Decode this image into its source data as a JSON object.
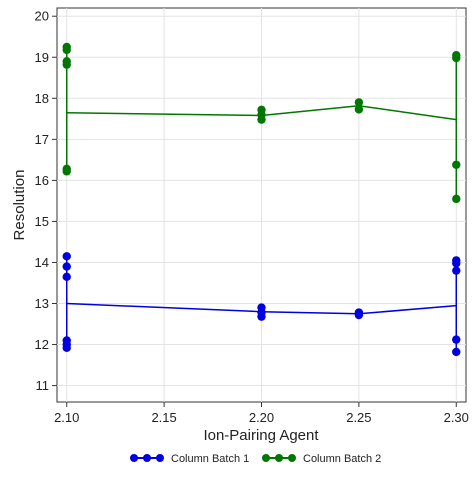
{
  "chart_data": {
    "type": "line",
    "title": "",
    "xlabel": "Ion-Pairing Agent",
    "ylabel": "Resolution",
    "xlim": [
      2.095,
      2.305
    ],
    "ylim": [
      10.6,
      20.2
    ],
    "x_ticks": [
      "2.10",
      "2.15",
      "2.20",
      "2.25",
      "2.30"
    ],
    "y_ticks": [
      "11",
      "12",
      "13",
      "14",
      "15",
      "16",
      "17",
      "18",
      "19",
      "20"
    ],
    "grid": true,
    "legend_position": "bottom",
    "series": [
      {
        "name": "Column Batch 1",
        "color": "#0000e0",
        "mean_line": [
          [
            2.1,
            13.0
          ],
          [
            2.2,
            12.8
          ],
          [
            2.25,
            12.75
          ],
          [
            2.3,
            12.95
          ]
        ],
        "points": [
          [
            2.1,
            14.15
          ],
          [
            2.1,
            13.9
          ],
          [
            2.1,
            13.65
          ],
          [
            2.1,
            12.1
          ],
          [
            2.1,
            12.0
          ],
          [
            2.1,
            11.92
          ],
          [
            2.2,
            12.9
          ],
          [
            2.2,
            12.78
          ],
          [
            2.2,
            12.68
          ],
          [
            2.25,
            12.78
          ],
          [
            2.25,
            12.72
          ],
          [
            2.3,
            14.05
          ],
          [
            2.3,
            13.98
          ],
          [
            2.3,
            13.8
          ],
          [
            2.3,
            12.12
          ],
          [
            2.3,
            11.82
          ]
        ]
      },
      {
        "name": "Column Batch 2",
        "color": "#007800",
        "mean_line": [
          [
            2.1,
            17.65
          ],
          [
            2.2,
            17.58
          ],
          [
            2.25,
            17.82
          ],
          [
            2.3,
            17.48
          ]
        ],
        "points": [
          [
            2.1,
            19.25
          ],
          [
            2.1,
            19.18
          ],
          [
            2.1,
            18.9
          ],
          [
            2.1,
            18.82
          ],
          [
            2.1,
            16.28
          ],
          [
            2.1,
            16.22
          ],
          [
            2.2,
            17.72
          ],
          [
            2.2,
            17.6
          ],
          [
            2.2,
            17.48
          ],
          [
            2.25,
            17.9
          ],
          [
            2.25,
            17.73
          ],
          [
            2.3,
            19.05
          ],
          [
            2.3,
            18.98
          ],
          [
            2.3,
            16.38
          ],
          [
            2.3,
            15.55
          ]
        ]
      }
    ]
  }
}
